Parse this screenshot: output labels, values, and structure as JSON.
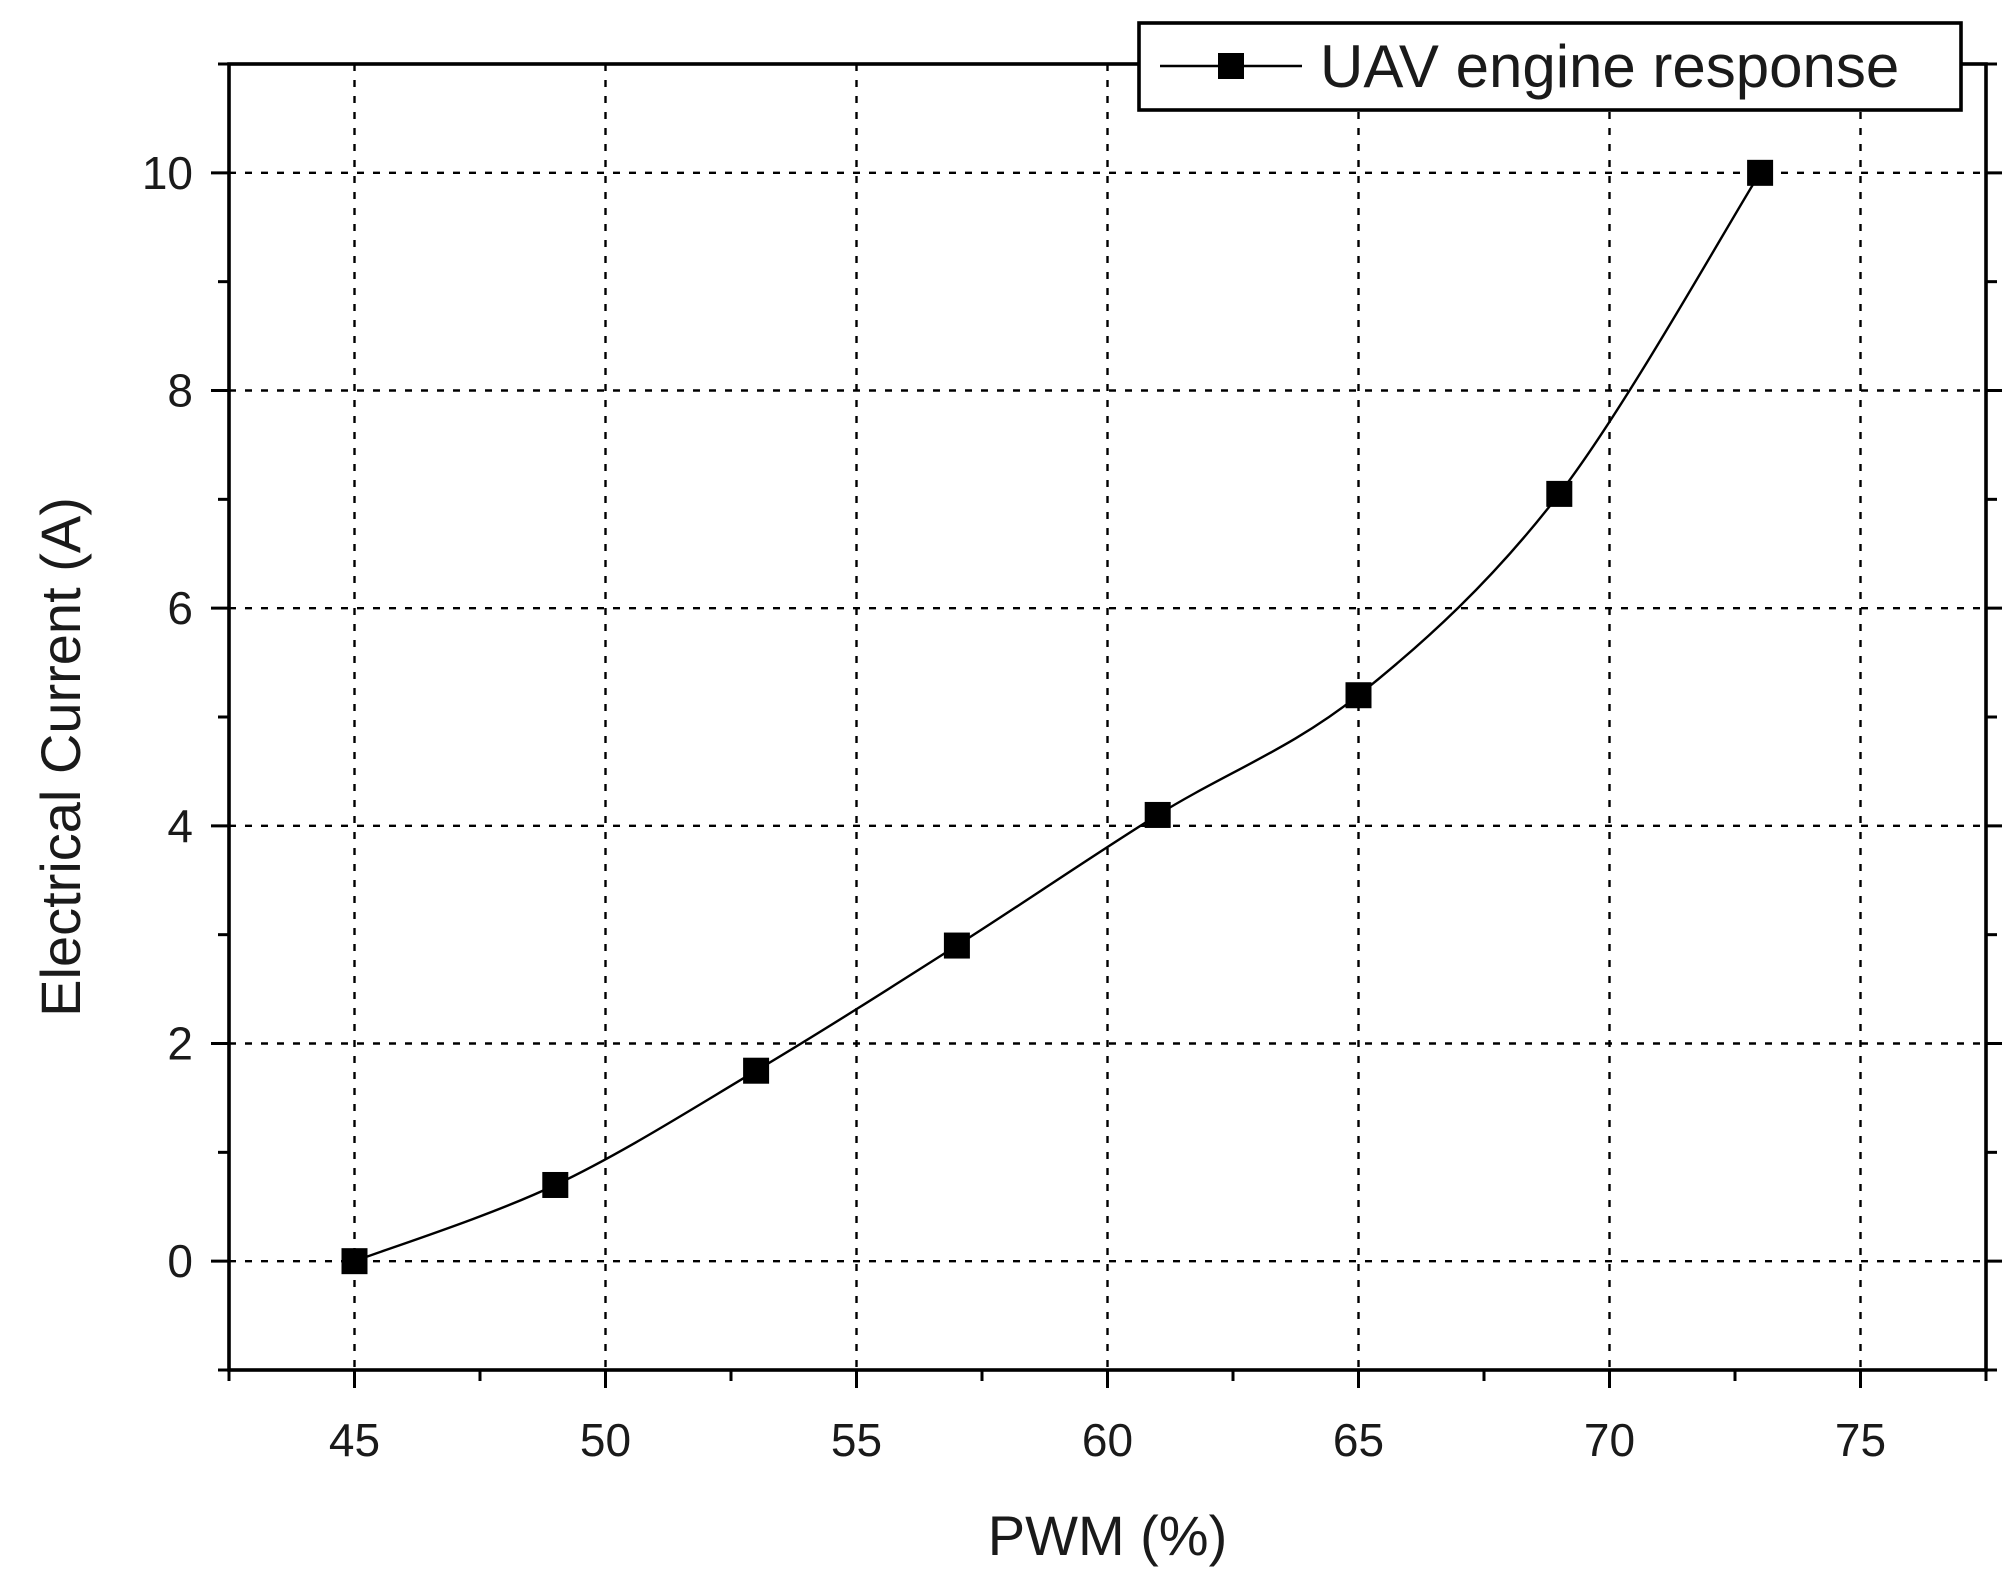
{
  "chart_data": {
    "type": "line",
    "xlabel": "PWM (%)",
    "ylabel": "Electrical Current (A)",
    "xlim": [
      42.5,
      77.5
    ],
    "ylim": [
      -1,
      11
    ],
    "x_ticks": [
      45,
      50,
      55,
      60,
      65,
      70,
      75
    ],
    "x_minor_step": 2.5,
    "y_ticks": [
      0,
      2,
      4,
      6,
      8,
      10
    ],
    "y_minor_step": 1,
    "grid": true,
    "legend_position": "top-right",
    "series": [
      {
        "name": "UAV engine response",
        "marker": "square",
        "color": "#000000",
        "x": [
          45,
          49,
          53,
          57,
          61,
          65,
          69,
          73
        ],
        "y": [
          0,
          0.7,
          1.75,
          2.9,
          4.1,
          5.2,
          7.05,
          10
        ]
      }
    ]
  }
}
